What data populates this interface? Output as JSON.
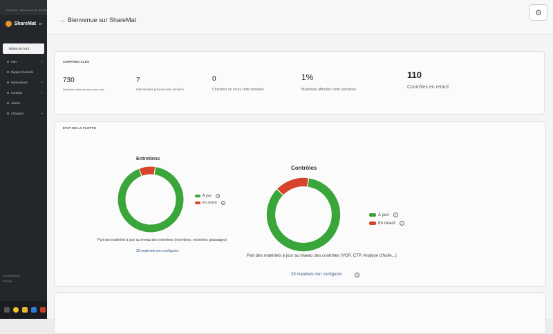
{
  "sidebar": {
    "tabstrip": "ShareMat - Bienvenue sur ShareMat",
    "brand": "ShareMat",
    "items": [
      {
        "label": "Tableau de bord"
      },
      {
        "label": "Parc"
      },
      {
        "label": "Rapport d'activité"
      },
      {
        "label": "Interventions"
      },
      {
        "label": "Contrats"
      },
      {
        "label": "Alertes"
      },
      {
        "label": "Chantiers"
      }
    ],
    "footer1": "ASSISTANCE",
    "footer2": "PROFIL"
  },
  "header": {
    "title": "Bienvenue sur ShareMat"
  },
  "kpis": {
    "section_title": "CHIFFRES CLÉS",
    "items": [
      {
        "value": "730",
        "label": "Matériels présents dans mon parc"
      },
      {
        "value": "7",
        "label": "Interventions prévues cette semaine"
      },
      {
        "value": "0",
        "label": "Chantiers en cours cette semaine"
      },
      {
        "value": "1%",
        "label": "Matériels affectés cette semaine"
      },
      {
        "value": "110",
        "label": "Contrôles en retard"
      }
    ]
  },
  "fleet": {
    "section_title": "ÉTAT DE LA FLOTTE",
    "charts": [
      {
        "title": "Entretiens",
        "legend": [
          "À jour",
          "En retard"
        ],
        "caption": "Part des matériels à jour au niveau des entretiens (entretiens, entretiens graissages)",
        "link": "29 matériels non configurés"
      },
      {
        "title": "Contrôles",
        "legend": [
          "À jour",
          "En retard"
        ],
        "caption": "Part des matériels à jour au niveau des contrôles (VGP, CTP, Analyse d'huile...)",
        "link": "29 matériels non configurés"
      }
    ]
  },
  "chart_data": [
    {
      "type": "pie",
      "title": "Entretiens",
      "categories": [
        "À jour",
        "En retard"
      ],
      "values": [
        92,
        8
      ],
      "colors": [
        "#3aa53a",
        "#d8432b"
      ]
    },
    {
      "type": "pie",
      "title": "Contrôles",
      "categories": [
        "À jour",
        "En retard"
      ],
      "values": [
        85,
        15
      ],
      "colors": [
        "#3aa53a",
        "#d8432b"
      ]
    }
  ]
}
